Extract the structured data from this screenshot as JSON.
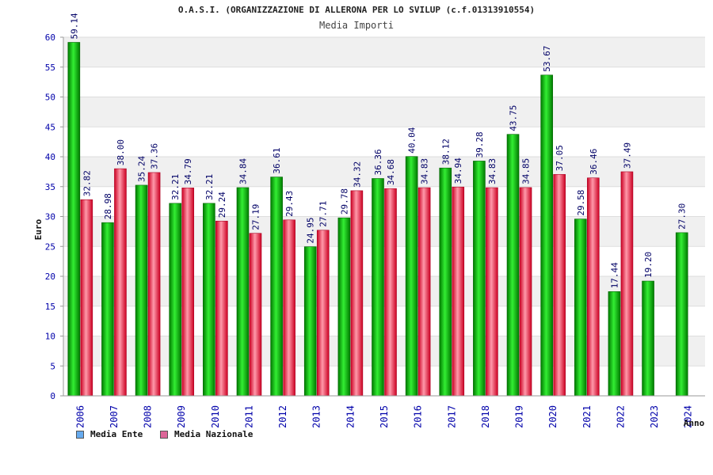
{
  "chart_data": {
    "type": "bar",
    "title": "O.A.S.I. (ORGANIZZAZIONE DI ALLERONA PER LO SVILUP (c.f.01313910554)",
    "subtitle": "Media Importi",
    "xlabel": "Anno",
    "ylabel": "Euro",
    "ylim": [
      0,
      60
    ],
    "yticks": [
      "0",
      "5",
      "10",
      "15",
      "20",
      "25",
      "30",
      "35",
      "40",
      "45",
      "50",
      "55",
      "60"
    ],
    "categories": [
      "2006",
      "2007",
      "2008",
      "2009",
      "2010",
      "2011",
      "2012",
      "2013",
      "2014",
      "2015",
      "2016",
      "2017",
      "2018",
      "2019",
      "2020",
      "2021",
      "2022",
      "2023",
      "2024"
    ],
    "series": [
      {
        "name": "Media Ente",
        "values": [
          59.14,
          28.98,
          35.24,
          32.21,
          32.21,
          34.84,
          36.61,
          24.95,
          29.78,
          36.36,
          40.04,
          38.12,
          39.28,
          43.75,
          53.67,
          29.58,
          17.44,
          19.2,
          27.3
        ],
        "labels": [
          "59.14",
          "28.98",
          "35.24",
          "32.21",
          "32.21",
          "34.84",
          "36.61",
          "24.95",
          "29.78",
          "36.36",
          "40.04",
          "38.12",
          "39.28",
          "43.75",
          "53.67",
          "29.58",
          "17.44",
          "19.20",
          "27.30"
        ]
      },
      {
        "name": "Media Nazionale",
        "values": [
          32.82,
          38.0,
          37.36,
          34.79,
          29.24,
          27.19,
          29.43,
          27.71,
          34.32,
          34.68,
          34.83,
          34.94,
          34.83,
          34.85,
          37.05,
          36.46,
          37.49,
          null,
          null
        ],
        "labels": [
          "32.82",
          "38.00",
          "37.36",
          "34.79",
          "29.24",
          "27.19",
          "29.43",
          "27.71",
          "34.32",
          "34.68",
          "34.83",
          "34.94",
          "34.83",
          "34.85",
          "37.05",
          "36.46",
          "37.49",
          "",
          ""
        ]
      }
    ],
    "grid": true,
    "legend": "bottom-left"
  },
  "colors": {
    "ente_dark": "#007a00",
    "ente_light": "#33ee33",
    "naz_dark": "#cc0022",
    "naz_light": "#ff99aa",
    "ente_legend": "#66aaee",
    "naz_legend": "#dd6699",
    "band": "#f0f0f0",
    "axis_text": "#0000aa"
  },
  "legend": {
    "ente_label": "Media Ente",
    "naz_label": "Media Nazionale"
  }
}
